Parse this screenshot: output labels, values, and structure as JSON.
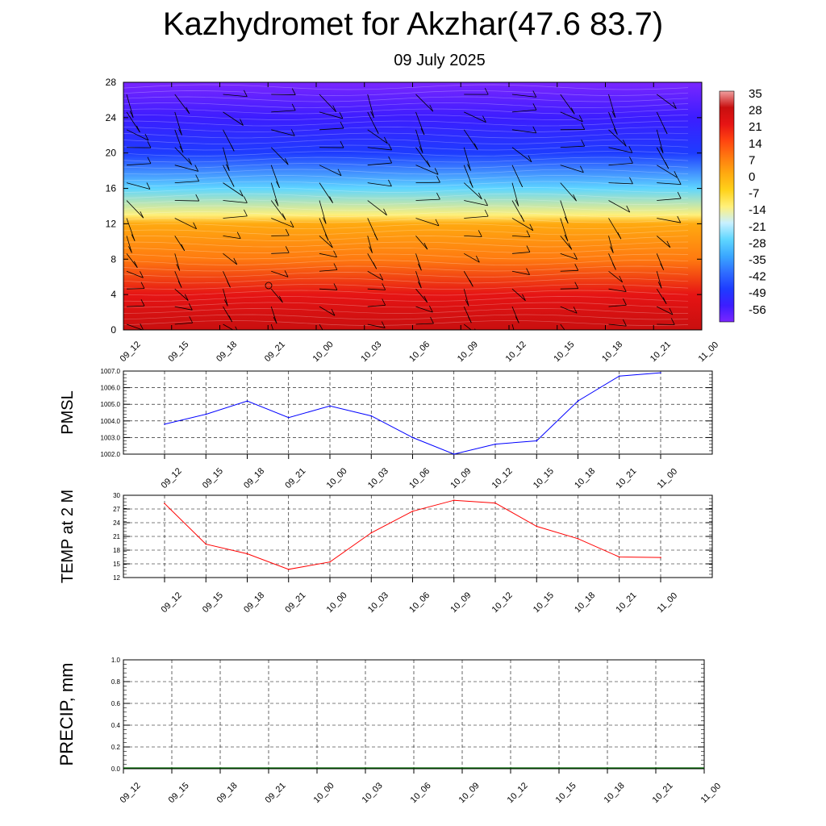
{
  "header": {
    "title": "Kazhydromet for Akzhar(47.6 83.7)",
    "date": "09 July 2025"
  },
  "chart_data": [
    {
      "type": "heatmap",
      "name": "vertical-cross-section",
      "x": [
        "09_12",
        "09_15",
        "09_18",
        "09_21",
        "10_00",
        "10_03",
        "10_06",
        "10_09",
        "10_12",
        "10_15",
        "10_18",
        "10_21",
        "11_00"
      ],
      "ylim": [
        0,
        28
      ],
      "yticks": [
        "0",
        "4",
        "8",
        "12",
        "16",
        "20",
        "24",
        "28"
      ],
      "colorbar_labels": [
        "35",
        "28",
        "21",
        "14",
        "7",
        "0",
        "-7",
        "-14",
        "-21",
        "-28",
        "-35",
        "-42",
        "-49",
        "-56"
      ],
      "colorbar_range": [
        -63,
        42
      ],
      "colormap": [
        "#7a26ff",
        "#3c1dff",
        "#1e3cff",
        "#2f6dff",
        "#3aa8ff",
        "#5fd6ff",
        "#c8f0ff",
        "#fff07a",
        "#ffd21a",
        "#ffaa10",
        "#ff7a10",
        "#ff4410",
        "#e61414",
        "#c80f0f",
        "#f0a0a0"
      ],
      "temperature_by_height": [
        {
          "height": 0,
          "temp": 32
        },
        {
          "height": 4,
          "temp": 24
        },
        {
          "height": 8,
          "temp": 14
        },
        {
          "height": 12,
          "temp": 2
        },
        {
          "height": 13,
          "temp": -10
        },
        {
          "height": 16,
          "temp": -25
        },
        {
          "height": 20,
          "temp": -45
        },
        {
          "height": 24,
          "temp": -55
        },
        {
          "height": 28,
          "temp": -60
        }
      ],
      "wind_barbs": true
    },
    {
      "type": "line",
      "name": "pmsl",
      "ylabel": "PMSL",
      "x": [
        "09_12",
        "09_15",
        "09_18",
        "09_21",
        "10_00",
        "10_03",
        "10_06",
        "10_09",
        "10_12",
        "10_15",
        "10_18",
        "10_21",
        "11_00"
      ],
      "values": [
        1003.8,
        1004.4,
        1005.2,
        1004.2,
        1004.9,
        1004.3,
        1003.0,
        1002.0,
        1002.6,
        1002.8,
        1005.2,
        1006.7,
        1006.9
      ],
      "ylim": [
        1002.0,
        1007.0
      ],
      "yticks": [
        "1002.0",
        "1003.0",
        "1004.0",
        "1005.0",
        "1006.0",
        "1007.0"
      ],
      "color": "#0000ff",
      "grid": true
    },
    {
      "type": "line",
      "name": "temp2m",
      "ylabel": "TEMP at 2 M",
      "x": [
        "09_12",
        "09_15",
        "09_18",
        "09_21",
        "10_00",
        "10_03",
        "10_06",
        "10_09",
        "10_12",
        "10_15",
        "10_18",
        "10_21",
        "11_00"
      ],
      "values": [
        28.2,
        19.3,
        17.2,
        13.8,
        15.4,
        21.8,
        26.5,
        28.9,
        28.3,
        23.2,
        20.5,
        16.5,
        16.4
      ],
      "ylim": [
        12,
        30
      ],
      "yticks": [
        "12",
        "15",
        "18",
        "21",
        "24",
        "27",
        "30"
      ],
      "color": "#ff0000",
      "grid": true
    },
    {
      "type": "bar",
      "name": "precip",
      "ylabel": "PRECIP, mm",
      "x": [
        "09_12",
        "09_15",
        "09_18",
        "09_21",
        "10_00",
        "10_03",
        "10_06",
        "10_09",
        "10_12",
        "10_15",
        "10_18",
        "10_21",
        "11_00"
      ],
      "values": [
        0,
        0,
        0,
        0,
        0,
        0,
        0,
        0,
        0,
        0,
        0,
        0,
        0
      ],
      "ylim": [
        0.0,
        1.0
      ],
      "yticks": [
        "0.0",
        "0.2",
        "0.4",
        "0.6",
        "0.8",
        "1.0"
      ],
      "color": "#006400",
      "grid": true
    }
  ]
}
